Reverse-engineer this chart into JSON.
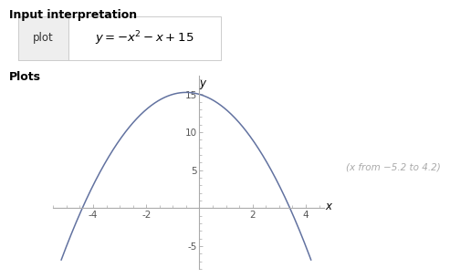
{
  "title_section": "Input interpretation",
  "plots_label": "Plots",
  "plot_label": "plot",
  "annotation": "(x from −5.2 to 4.2)",
  "x_min": -5.2,
  "x_max": 4.2,
  "y_min": -8.0,
  "y_max": 17.5,
  "curve_color": "#6272a0",
  "curve_linewidth": 1.1,
  "axis_color": "#aaaaaa",
  "tick_color": "#555555",
  "bg_color": "#ffffff",
  "x_ticks": [
    -4,
    -2,
    2,
    4
  ],
  "y_ticks": [
    -5,
    5,
    10,
    15
  ],
  "x_label": "x",
  "y_label": "y",
  "header_fontsize": 9,
  "plots_fontsize": 9,
  "annotation_fontsize": 7.5,
  "annotation_color": "#aaaaaa",
  "tick_fontsize": 7.5
}
